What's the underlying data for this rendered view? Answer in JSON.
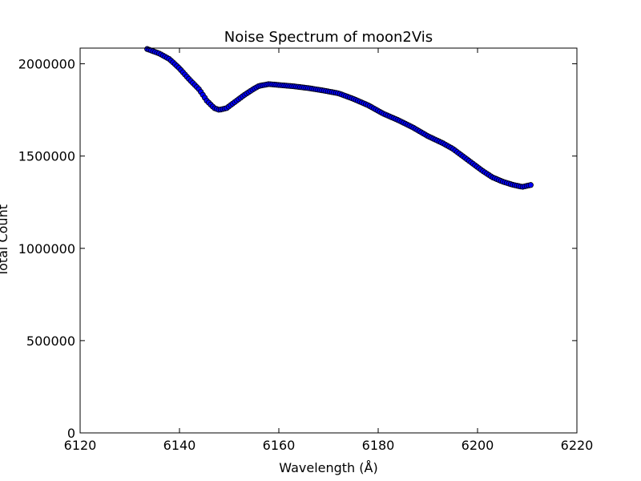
{
  "chart_data": {
    "type": "scatter",
    "title": "Noise Spectrum of moon2Vis",
    "xlabel": "Wavelength (Å)",
    "ylabel": "Total Count",
    "xlim": [
      6120,
      6220
    ],
    "ylim": [
      0,
      2085000
    ],
    "x_ticks": [
      6120,
      6140,
      6160,
      6180,
      6200,
      6220
    ],
    "y_ticks": [
      0,
      500000,
      1000000,
      1500000,
      2000000
    ],
    "grid": false,
    "legend": "none",
    "marker_color": "#0000ff",
    "marker_edge_color": "#000000",
    "anchors": {
      "x": [
        6133.5,
        6136,
        6138,
        6140,
        6142,
        6144,
        6145.5,
        6147,
        6148,
        6149.5,
        6151,
        6153,
        6155,
        6156,
        6158,
        6160,
        6163,
        6166,
        6169,
        6172,
        6175,
        6178,
        6181,
        6184,
        6187,
        6190,
        6193,
        6195,
        6197,
        6199,
        6201,
        6203,
        6205,
        6207,
        6209,
        6211
      ],
      "y": [
        2080000,
        2055000,
        2025000,
        1975000,
        1915000,
        1860000,
        1800000,
        1760000,
        1750000,
        1760000,
        1790000,
        1830000,
        1865000,
        1880000,
        1890000,
        1885000,
        1878000,
        1868000,
        1855000,
        1840000,
        1810000,
        1775000,
        1730000,
        1695000,
        1655000,
        1608000,
        1570000,
        1540000,
        1500000,
        1460000,
        1420000,
        1385000,
        1362000,
        1345000,
        1333000,
        1345000
      ]
    },
    "point_spacing": 0.4
  }
}
